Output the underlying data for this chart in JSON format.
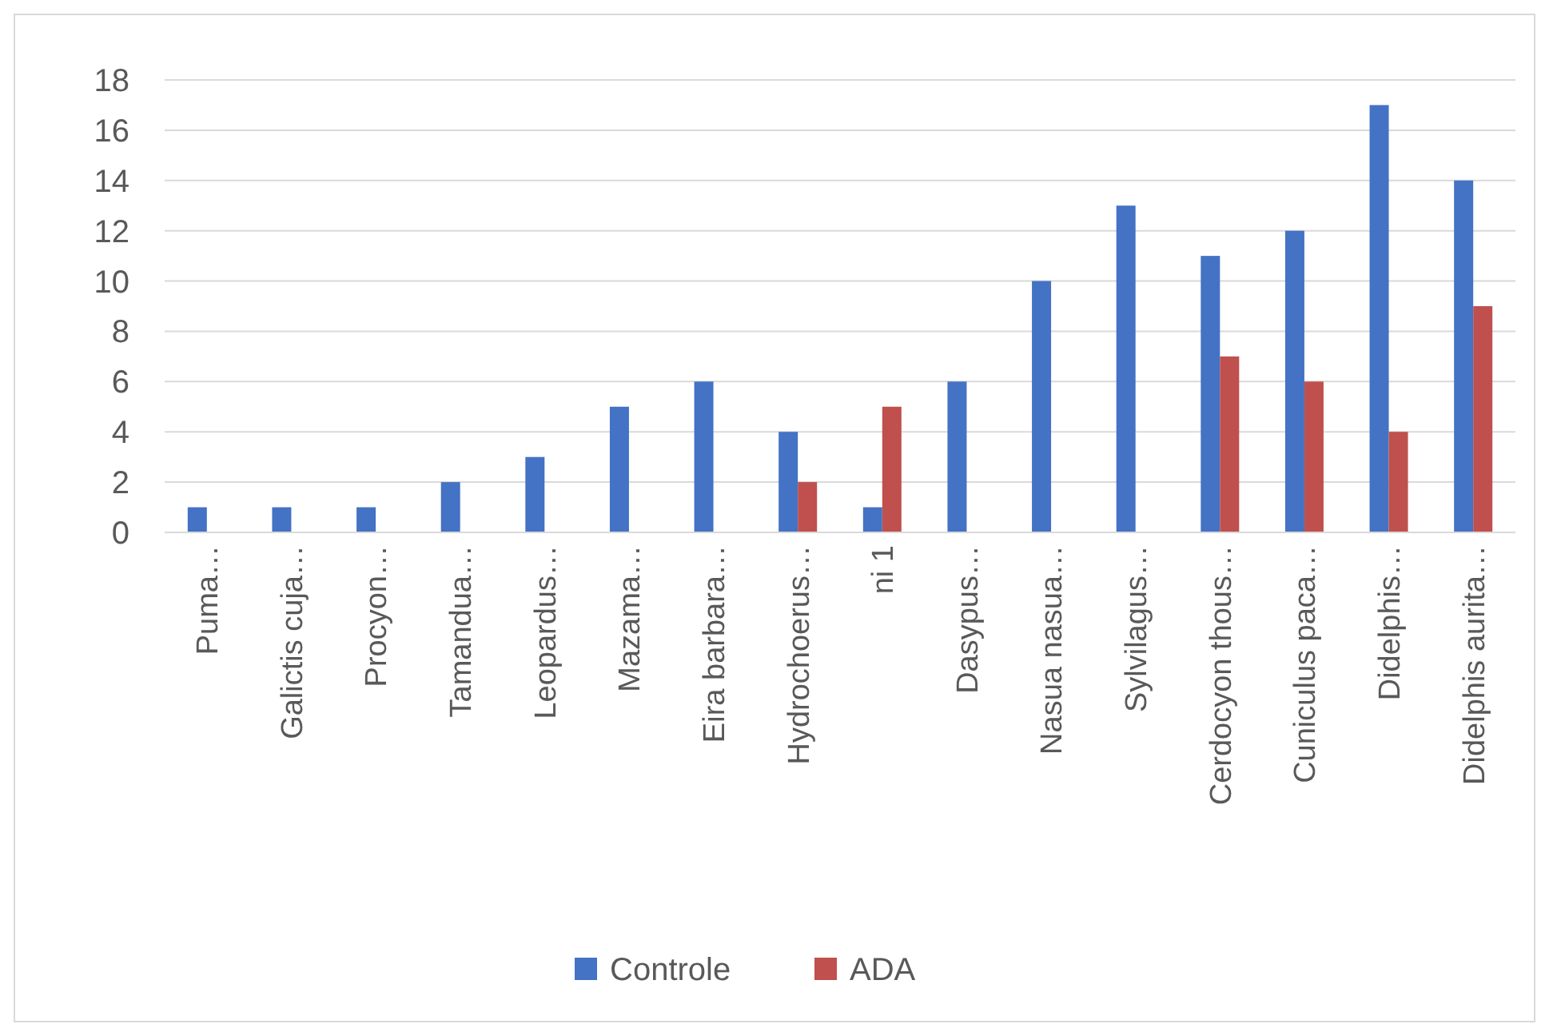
{
  "chart_data": {
    "type": "bar",
    "categories": [
      "Puma…",
      "Galictis cuja…",
      "Procyon…",
      "Tamandua…",
      "Leopardus…",
      "Mazama…",
      "Eira barbara…",
      "Hydrochoerus…",
      "ni 1",
      "Dasypus…",
      "Nasua nasua…",
      "Sylvilagus…",
      "Cerdocyon thous…",
      "Cuniculus paca…",
      "Didelphis…",
      "Didelphis aurita…"
    ],
    "series": [
      {
        "name": "Controle",
        "color": "#4472c4",
        "values": [
          1,
          1,
          1,
          2,
          3,
          5,
          6,
          4,
          1,
          6,
          10,
          13,
          11,
          12,
          17,
          14
        ]
      },
      {
        "name": "ADA",
        "color": "#c0504d",
        "values": [
          null,
          null,
          null,
          null,
          null,
          null,
          null,
          2,
          5,
          null,
          null,
          null,
          7,
          6,
          4,
          9
        ]
      }
    ],
    "ylim": [
      0,
      18
    ],
    "yticks": [
      0,
      2,
      4,
      6,
      8,
      10,
      12,
      14,
      16,
      18
    ],
    "grid": "y",
    "legend": "bottom"
  }
}
